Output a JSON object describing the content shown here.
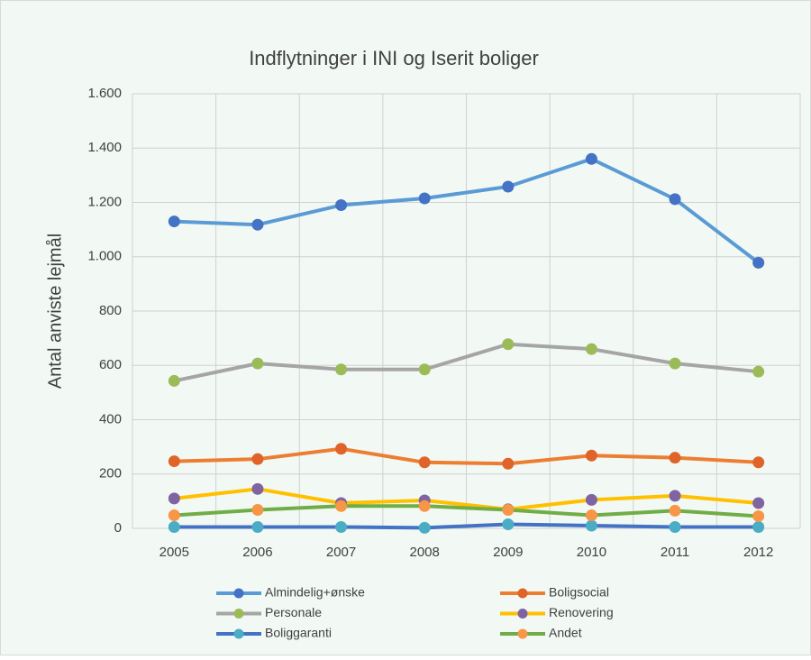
{
  "chart_data": {
    "type": "line",
    "title": "Indflytninger i INI og Iserit boliger",
    "y_label": "Antal anviste lejmål",
    "categories": [
      "2005",
      "2006",
      "2007",
      "2008",
      "2009",
      "2010",
      "2011",
      "2012"
    ],
    "ylim": [
      0,
      1600
    ],
    "yticks": [
      0,
      200,
      400,
      600,
      800,
      {
        "value": 1000,
        "label": "1.000"
      },
      {
        "value": 1200,
        "label": "1.200"
      },
      {
        "value": 1400,
        "label": "1.400"
      },
      {
        "value": 1600,
        "label": "1.600"
      }
    ],
    "grid": true,
    "legend": "bottom",
    "series": [
      {
        "name": "Almindelig+ønske",
        "color": "#5b9bd5",
        "marker_color": "#4472c4",
        "values": [
          1130,
          1118,
          1190,
          1215,
          1258,
          1360,
          1212,
          978
        ]
      },
      {
        "name": "Boligsocial",
        "color": "#ed7d31",
        "marker_color": "#e0642a",
        "values": [
          247,
          255,
          293,
          243,
          238,
          268,
          260,
          243
        ]
      },
      {
        "name": "Personale",
        "color": "#a5a5a5",
        "marker_color": "#9bbb59",
        "values": [
          543,
          607,
          585,
          585,
          678,
          660,
          607,
          577
        ]
      },
      {
        "name": "Renovering",
        "color": "#ffc000",
        "marker_color": "#8064a2",
        "values": [
          110,
          145,
          93,
          103,
          70,
          105,
          120,
          93
        ]
      },
      {
        "name": "Boliggaranti",
        "color": "#4472c4",
        "marker_color": "#4bacc6",
        "values": [
          5,
          5,
          5,
          2,
          15,
          10,
          5,
          5
        ]
      },
      {
        "name": "Andet",
        "color": "#70ad47",
        "marker_color": "#f79646",
        "values": [
          48,
          68,
          82,
          82,
          68,
          48,
          65,
          45
        ]
      }
    ]
  }
}
